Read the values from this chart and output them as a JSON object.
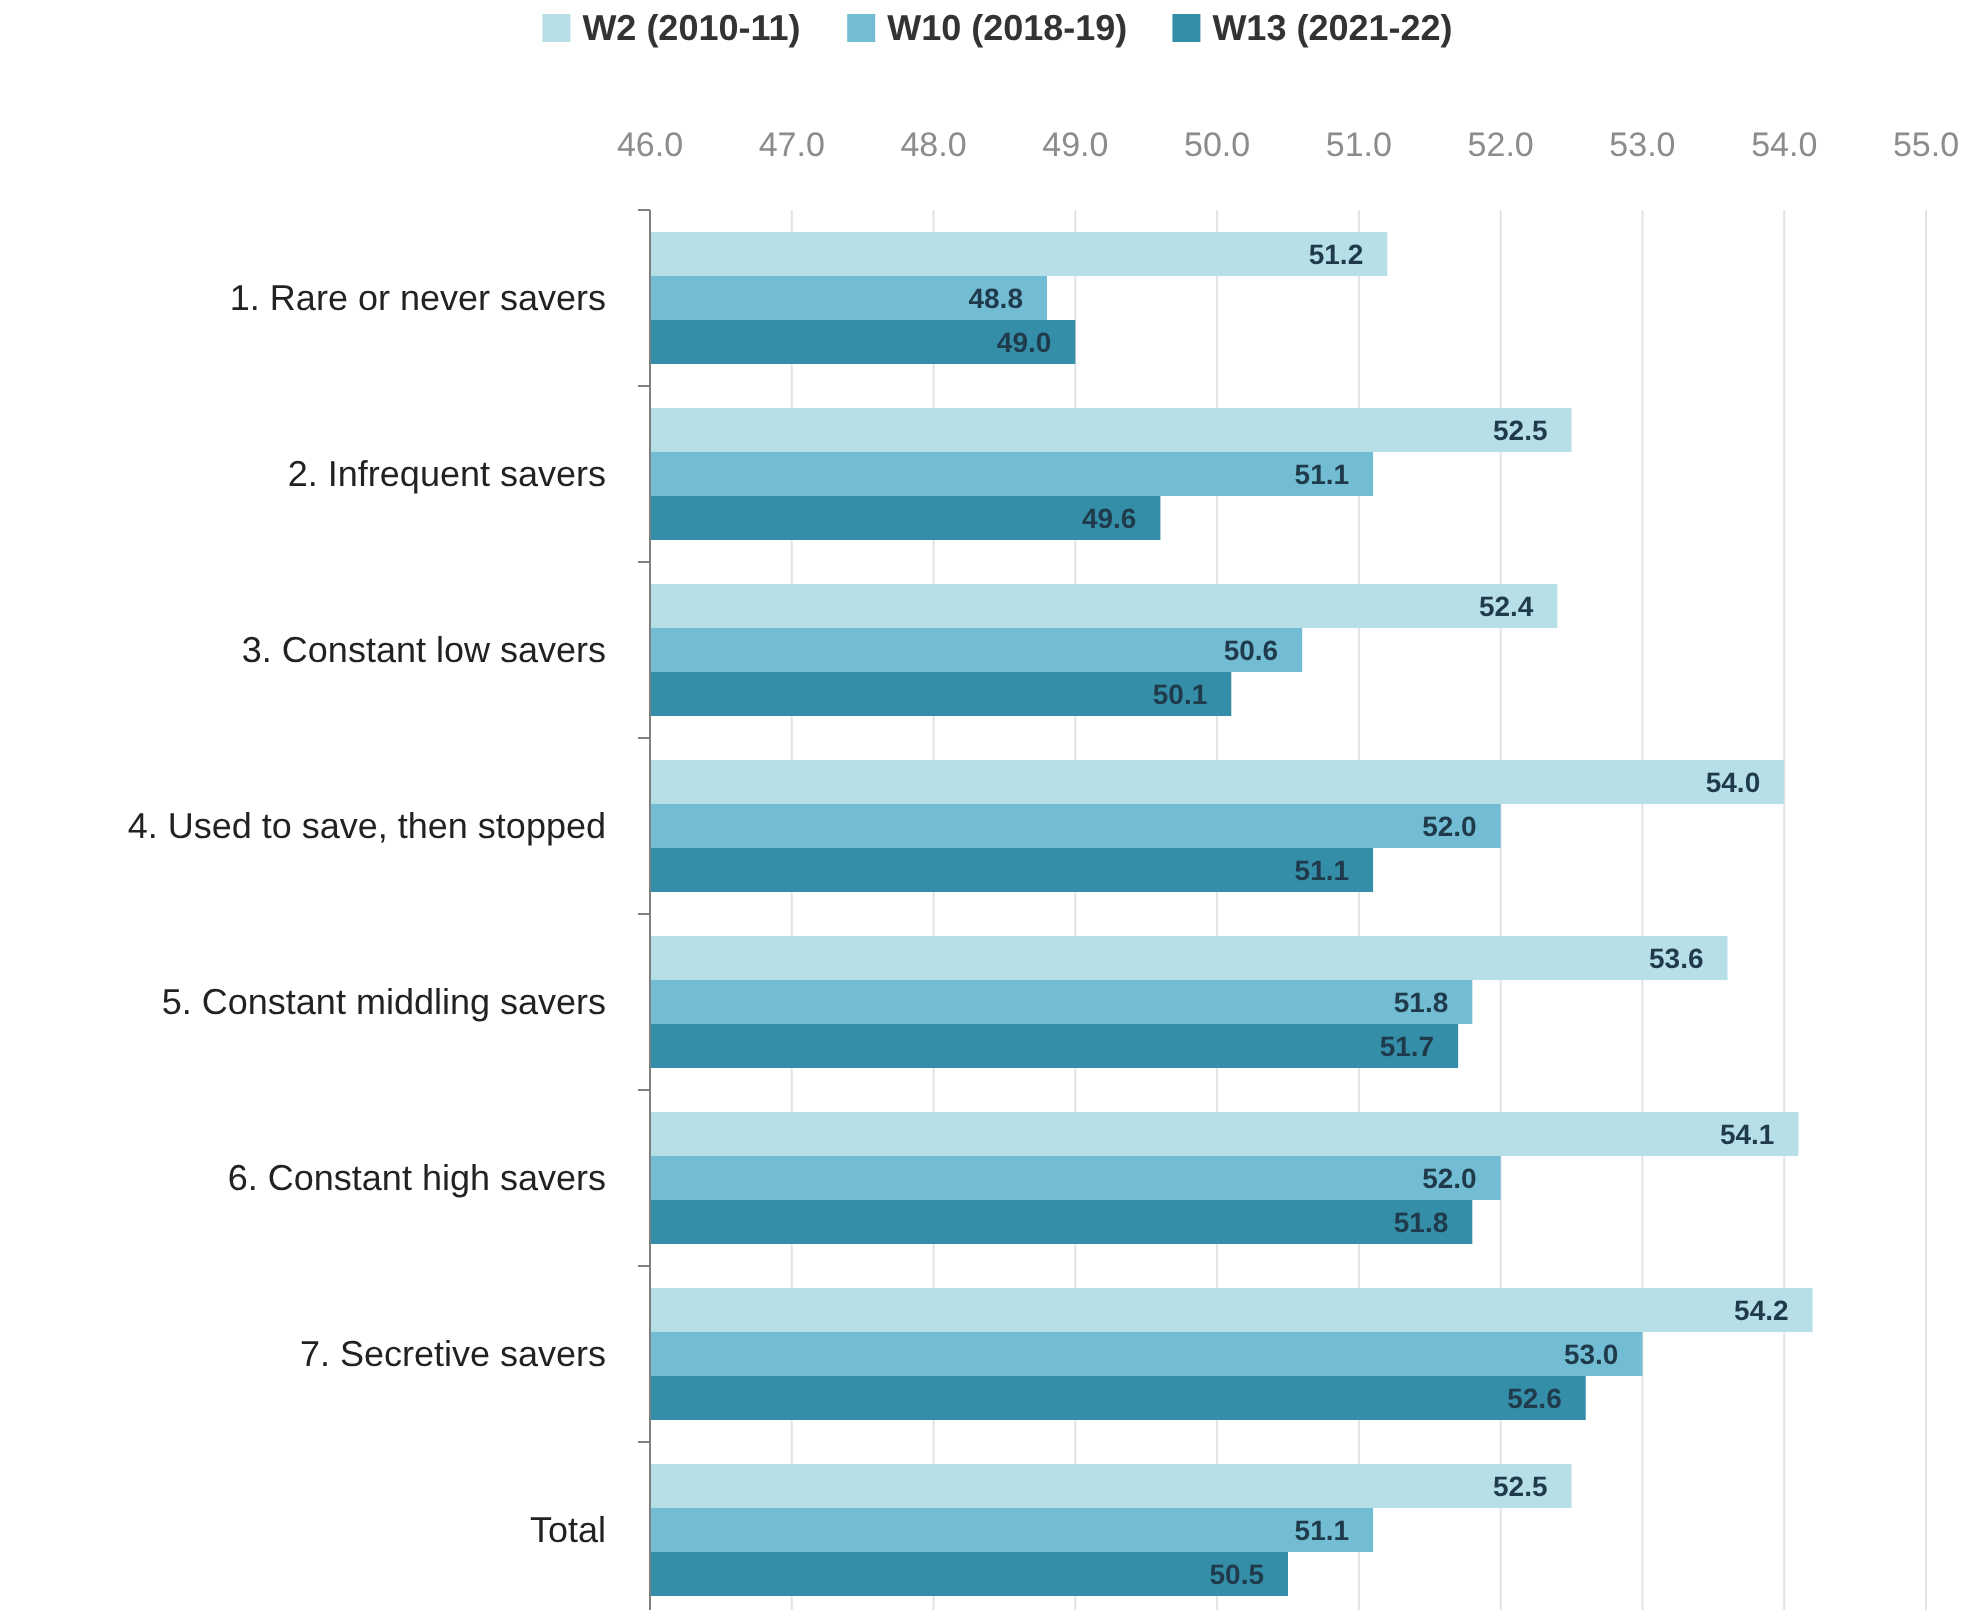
{
  "chart_data": {
    "type": "bar",
    "orientation": "horizontal",
    "categories": [
      "1. Rare or never savers",
      "2. Infrequent savers",
      "3. Constant low savers",
      "4. Used to save, then stopped",
      "5. Constant middling savers",
      "6. Constant high savers",
      "7. Secretive savers",
      "Total"
    ],
    "series": [
      {
        "name": "W2 (2010-11)",
        "color": "#b7dfe8",
        "values": [
          51.2,
          52.5,
          52.4,
          54.0,
          53.6,
          54.1,
          54.2,
          52.5
        ],
        "value_labels": [
          "51.2",
          "52.5",
          "52.4",
          "54.0",
          "53.6",
          "54.1",
          "54.2",
          "52.5"
        ]
      },
      {
        "name": "W10 (2018-19)",
        "color": "#72bcd4",
        "values": [
          48.8,
          51.1,
          50.6,
          52.0,
          51.8,
          52.0,
          53.0,
          51.1
        ],
        "value_labels": [
          "48.8",
          "51.1",
          "50.6",
          "52.0",
          "51.8",
          "52.0",
          "53.0",
          "51.1"
        ]
      },
      {
        "name": "W13 (2021-22)",
        "color": "#358ea8",
        "values": [
          49.0,
          49.6,
          50.1,
          51.1,
          51.7,
          51.8,
          52.6,
          50.5
        ],
        "value_labels": [
          "49.0",
          "49.6",
          "50.1",
          "51.1",
          "51.7",
          "51.8",
          "52.6",
          "50.5"
        ]
      }
    ],
    "xlim": [
      46,
      55
    ],
    "xticks": [
      {
        "value": 46,
        "label": "46.0"
      },
      {
        "value": 47,
        "label": "47.0"
      },
      {
        "value": 48,
        "label": "48.0"
      },
      {
        "value": 49,
        "label": "49.0"
      },
      {
        "value": 50,
        "label": "50.0"
      },
      {
        "value": 51,
        "label": "51.0"
      },
      {
        "value": 52,
        "label": "52.0"
      },
      {
        "value": 53,
        "label": "53.0"
      },
      {
        "value": 54,
        "label": "54.0"
      },
      {
        "value": 55,
        "label": "55.0"
      }
    ],
    "grid": "x",
    "legend": "top"
  }
}
